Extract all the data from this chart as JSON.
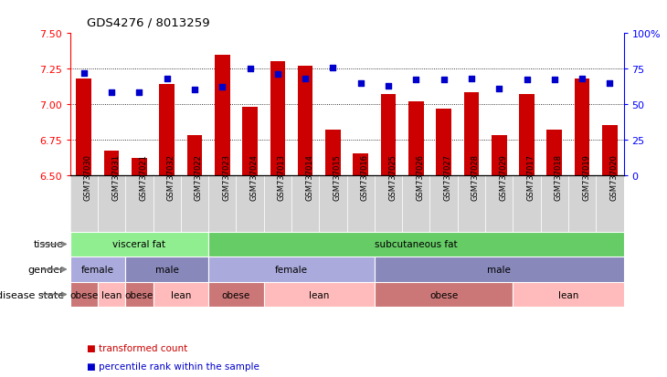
{
  "title": "GDS4276 / 8013259",
  "samples": [
    "GSM737030",
    "GSM737031",
    "GSM737021",
    "GSM737032",
    "GSM737022",
    "GSM737023",
    "GSM737024",
    "GSM737013",
    "GSM737014",
    "GSM737015",
    "GSM737016",
    "GSM737025",
    "GSM737026",
    "GSM737027",
    "GSM737028",
    "GSM737029",
    "GSM737017",
    "GSM737018",
    "GSM737019",
    "GSM737020"
  ],
  "bar_values": [
    7.18,
    6.67,
    6.62,
    7.14,
    6.78,
    7.35,
    6.98,
    7.3,
    7.27,
    6.82,
    6.65,
    7.07,
    7.02,
    6.97,
    7.08,
    6.78,
    7.07,
    6.82,
    7.18,
    6.85
  ],
  "dot_values": [
    72,
    58,
    58,
    68,
    60,
    62,
    75,
    71,
    68,
    76,
    65,
    63,
    67,
    67,
    68,
    61,
    67,
    67,
    68,
    65
  ],
  "ylim_left": [
    6.5,
    7.5
  ],
  "ylim_right": [
    0,
    100
  ],
  "yticks_left": [
    6.5,
    6.75,
    7.0,
    7.25,
    7.5
  ],
  "yticks_right": [
    0,
    25,
    50,
    75,
    100
  ],
  "ytick_labels_right": [
    "0",
    "25",
    "50",
    "75",
    "100%"
  ],
  "bar_color": "#cc0000",
  "dot_color": "#0000cc",
  "tick_bg_color": "#d3d3d3",
  "tissue_groups": [
    {
      "label": "visceral fat",
      "start": 0,
      "end": 4,
      "color": "#90ee90"
    },
    {
      "label": "subcutaneous fat",
      "start": 5,
      "end": 19,
      "color": "#66cc66"
    }
  ],
  "gender_groups": [
    {
      "label": "female",
      "start": 0,
      "end": 1,
      "color": "#aaaadd"
    },
    {
      "label": "male",
      "start": 2,
      "end": 4,
      "color": "#8888bb"
    },
    {
      "label": "female",
      "start": 5,
      "end": 10,
      "color": "#aaaadd"
    },
    {
      "label": "male",
      "start": 11,
      "end": 19,
      "color": "#8888bb"
    }
  ],
  "disease_groups": [
    {
      "label": "obese",
      "start": 0,
      "end": 0,
      "color": "#cc7777"
    },
    {
      "label": "lean",
      "start": 1,
      "end": 1,
      "color": "#ffbbbb"
    },
    {
      "label": "obese",
      "start": 2,
      "end": 2,
      "color": "#cc7777"
    },
    {
      "label": "lean",
      "start": 3,
      "end": 4,
      "color": "#ffbbbb"
    },
    {
      "label": "obese",
      "start": 5,
      "end": 6,
      "color": "#cc7777"
    },
    {
      "label": "lean",
      "start": 7,
      "end": 10,
      "color": "#ffbbbb"
    },
    {
      "label": "obese",
      "start": 11,
      "end": 15,
      "color": "#cc7777"
    },
    {
      "label": "lean",
      "start": 16,
      "end": 19,
      "color": "#ffbbbb"
    }
  ],
  "row_labels": [
    "tissue",
    "gender",
    "disease state"
  ],
  "legend_items": [
    {
      "label": "transformed count",
      "color": "#cc0000"
    },
    {
      "label": "percentile rank within the sample",
      "color": "#0000cc"
    }
  ]
}
